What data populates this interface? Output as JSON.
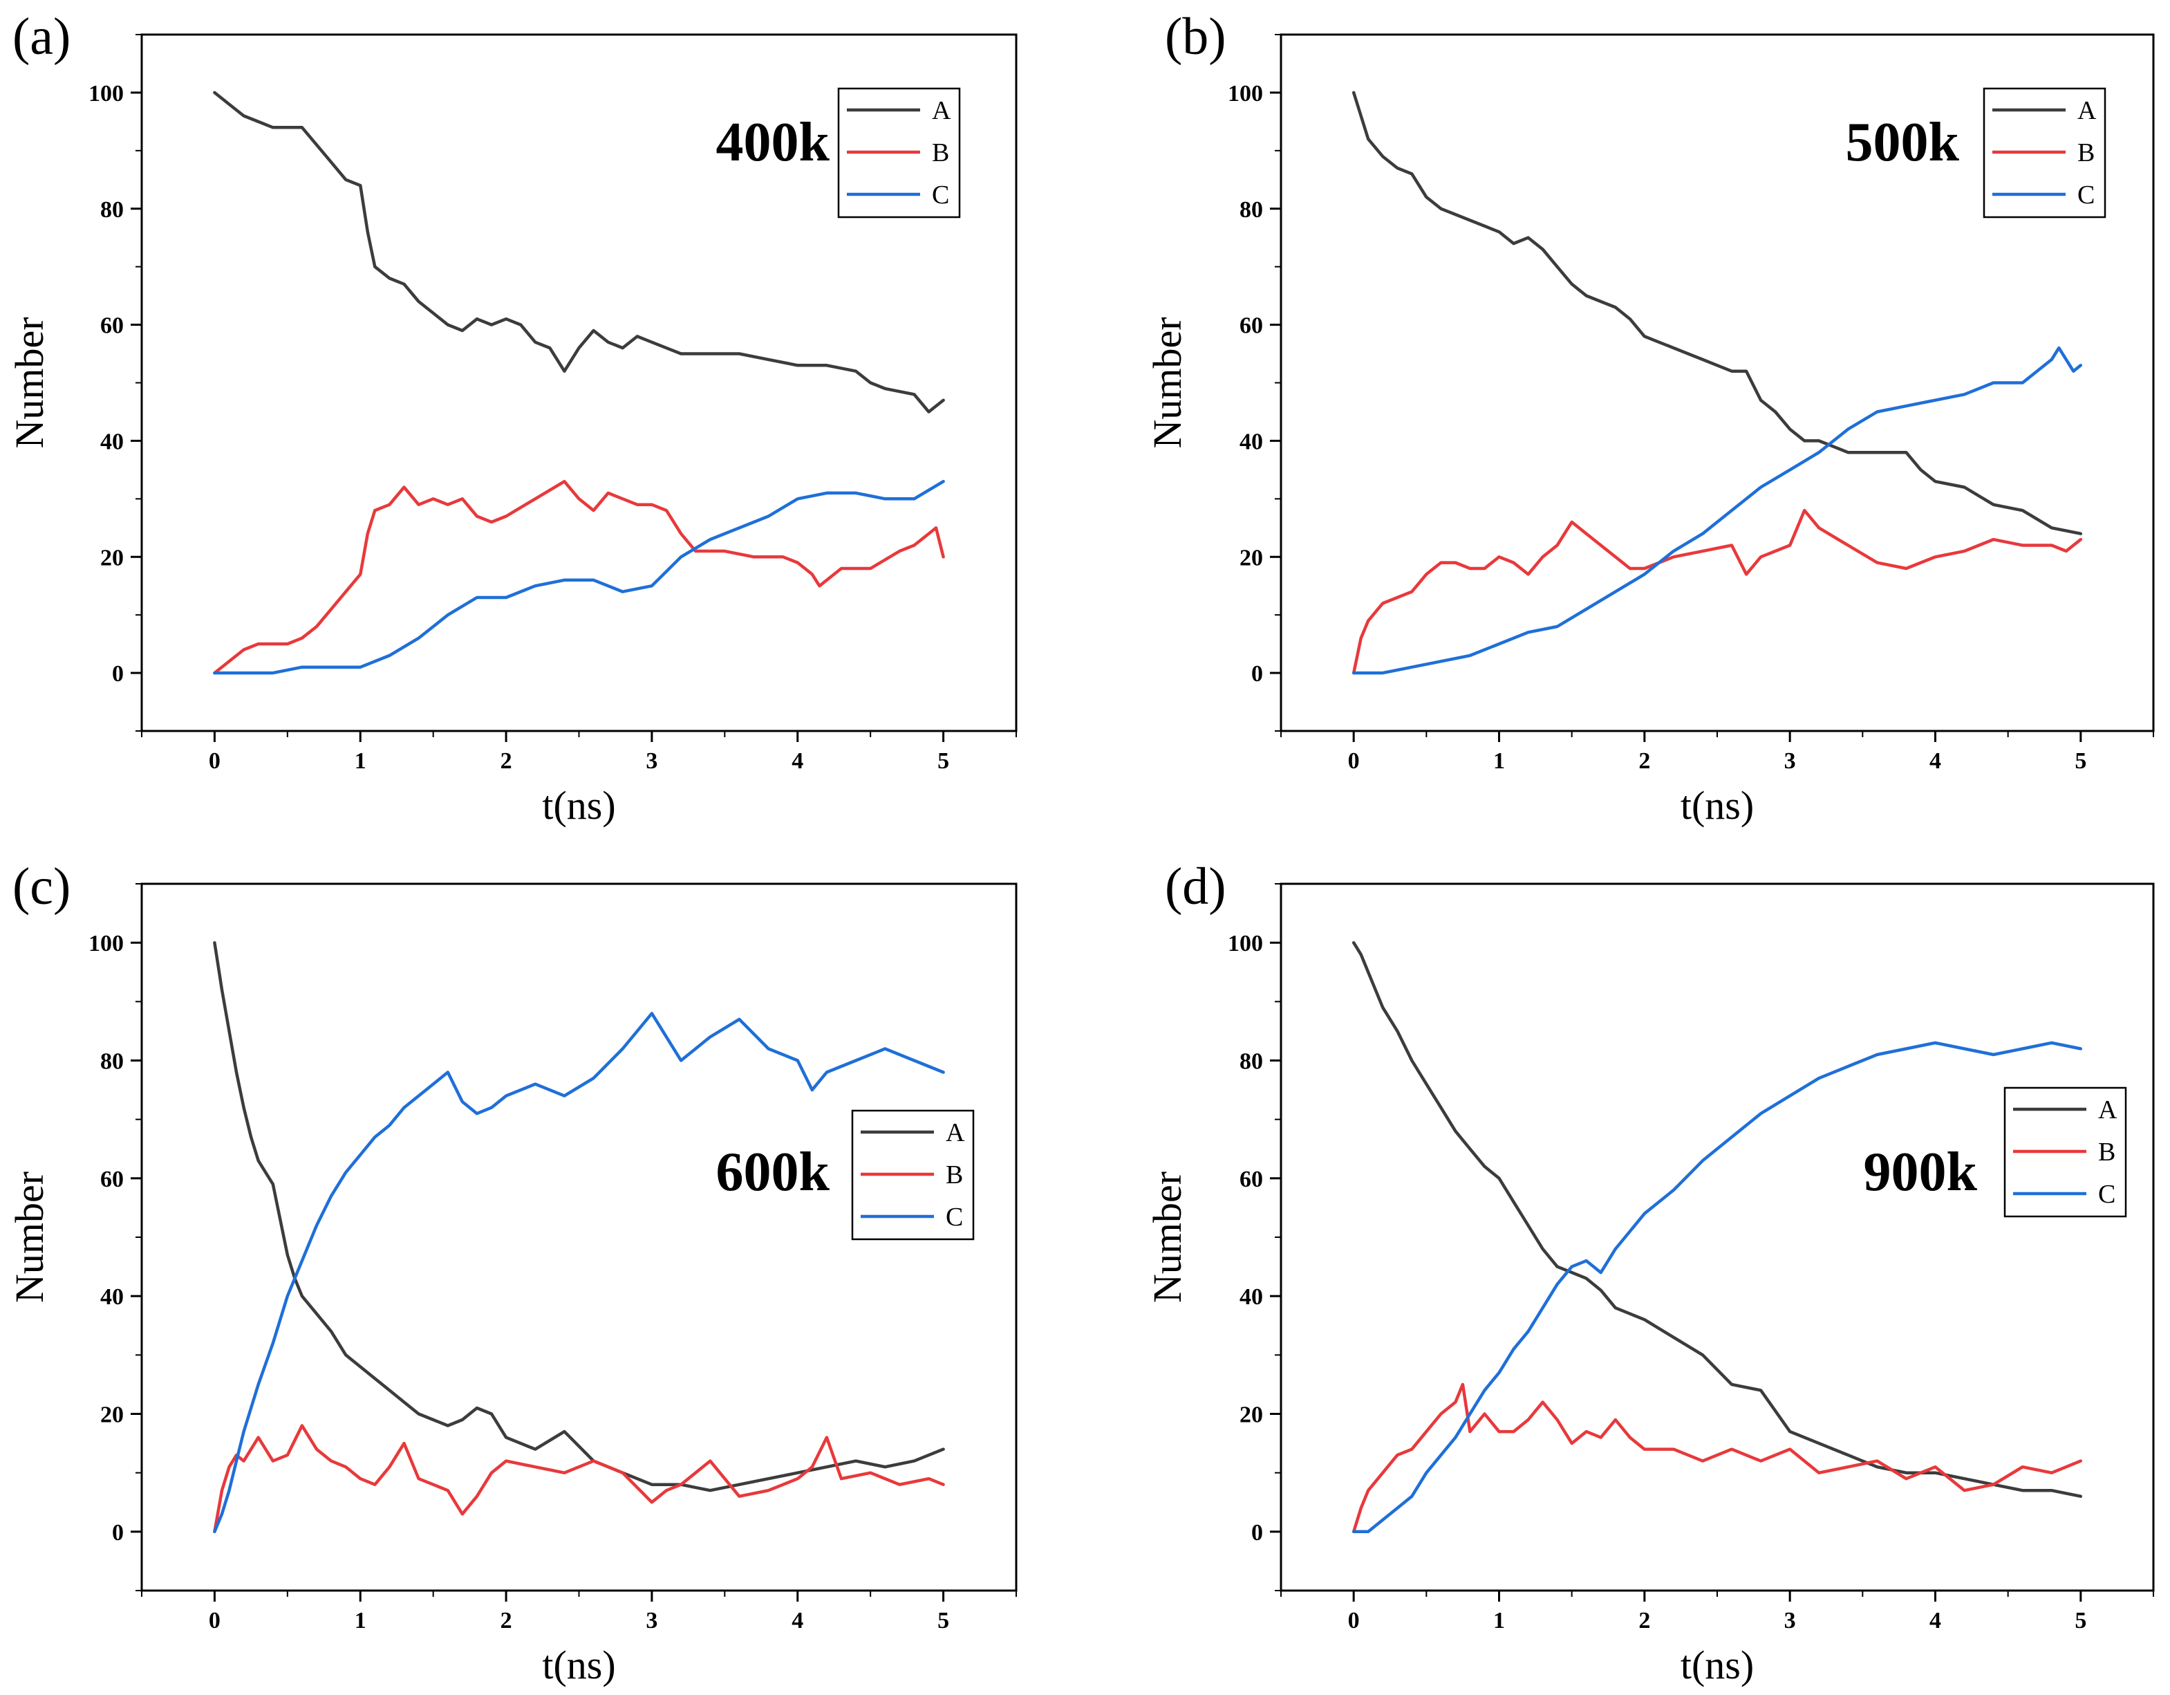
{
  "chart_data": [
    {
      "type": "line",
      "panel_label": "(a)",
      "annotation": "400k",
      "xlabel": "t(ns)",
      "ylabel": "Number",
      "xlim": [
        -0.5,
        5.5
      ],
      "ylim": [
        -10,
        110
      ],
      "xticks": [
        "0",
        "1",
        "2",
        "3",
        "4",
        "5"
      ],
      "yticks": [
        "0",
        "20",
        "40",
        "60",
        "80",
        "100"
      ],
      "legend_position": "top-right",
      "colors": {
        "A": "#3c3c3c",
        "B": "#e8393b",
        "C": "#1f6fd8"
      },
      "series": [
        {
          "name": "A",
          "x": [
            0,
            0.1,
            0.2,
            0.3,
            0.4,
            0.5,
            0.6,
            0.7,
            0.8,
            0.9,
            1.0,
            1.05,
            1.1,
            1.2,
            1.3,
            1.4,
            1.5,
            1.6,
            1.7,
            1.8,
            1.9,
            2.0,
            2.1,
            2.2,
            2.3,
            2.4,
            2.5,
            2.6,
            2.7,
            2.8,
            2.9,
            3.0,
            3.2,
            3.4,
            3.6,
            3.8,
            4.0,
            4.2,
            4.4,
            4.5,
            4.6,
            4.8,
            4.9,
            5.0
          ],
          "y": [
            100,
            98,
            96,
            95,
            94,
            94,
            94,
            91,
            88,
            85,
            84,
            76,
            70,
            68,
            67,
            64,
            62,
            60,
            59,
            61,
            60,
            61,
            60,
            57,
            56,
            52,
            56,
            59,
            57,
            56,
            58,
            57,
            55,
            55,
            55,
            54,
            53,
            53,
            52,
            50,
            49,
            48,
            45,
            47
          ]
        },
        {
          "name": "B",
          "x": [
            0,
            0.1,
            0.2,
            0.3,
            0.4,
            0.5,
            0.6,
            0.7,
            0.8,
            0.9,
            1.0,
            1.05,
            1.1,
            1.2,
            1.3,
            1.4,
            1.5,
            1.6,
            1.7,
            1.8,
            1.9,
            2.0,
            2.2,
            2.4,
            2.5,
            2.6,
            2.7,
            2.8,
            2.9,
            3.0,
            3.1,
            3.2,
            3.3,
            3.5,
            3.7,
            3.9,
            4.0,
            4.1,
            4.15,
            4.3,
            4.5,
            4.7,
            4.8,
            4.9,
            4.95,
            5.0
          ],
          "y": [
            0,
            2,
            4,
            5,
            5,
            5,
            6,
            8,
            11,
            14,
            17,
            24,
            28,
            29,
            32,
            29,
            30,
            29,
            30,
            27,
            26,
            27,
            30,
            33,
            30,
            28,
            31,
            30,
            29,
            29,
            28,
            24,
            21,
            21,
            20,
            20,
            19,
            17,
            15,
            18,
            18,
            21,
            22,
            24,
            25,
            20
          ]
        },
        {
          "name": "C",
          "x": [
            0,
            0.2,
            0.4,
            0.6,
            0.8,
            1.0,
            1.2,
            1.4,
            1.6,
            1.8,
            2.0,
            2.2,
            2.4,
            2.6,
            2.8,
            3.0,
            3.2,
            3.4,
            3.6,
            3.8,
            4.0,
            4.2,
            4.4,
            4.6,
            4.8,
            5.0
          ],
          "y": [
            0,
            0,
            0,
            1,
            1,
            1,
            3,
            6,
            10,
            13,
            13,
            15,
            16,
            16,
            14,
            15,
            20,
            23,
            25,
            27,
            30,
            31,
            31,
            30,
            30,
            33
          ]
        }
      ]
    },
    {
      "type": "line",
      "panel_label": "(b)",
      "annotation": "500k",
      "xlabel": "t(ns)",
      "ylabel": "Number",
      "xlim": [
        -0.5,
        5.5
      ],
      "ylim": [
        -10,
        110
      ],
      "xticks": [
        "0",
        "1",
        "2",
        "3",
        "4",
        "5"
      ],
      "yticks": [
        "0",
        "20",
        "40",
        "60",
        "80",
        "100"
      ],
      "legend_position": "top-right",
      "colors": {
        "A": "#3c3c3c",
        "B": "#e8393b",
        "C": "#1f6fd8"
      },
      "series": [
        {
          "name": "A",
          "x": [
            0,
            0.05,
            0.1,
            0.2,
            0.3,
            0.4,
            0.5,
            0.6,
            0.7,
            0.8,
            0.9,
            1.0,
            1.1,
            1.2,
            1.3,
            1.4,
            1.5,
            1.6,
            1.7,
            1.8,
            1.9,
            2.0,
            2.1,
            2.2,
            2.3,
            2.4,
            2.5,
            2.6,
            2.7,
            2.8,
            2.9,
            3.0,
            3.1,
            3.2,
            3.3,
            3.4,
            3.5,
            3.6,
            3.7,
            3.8,
            3.9,
            4.0,
            4.2,
            4.4,
            4.6,
            4.8,
            5.0
          ],
          "y": [
            100,
            96,
            92,
            89,
            87,
            86,
            82,
            80,
            79,
            78,
            77,
            76,
            74,
            75,
            73,
            70,
            67,
            65,
            64,
            63,
            61,
            58,
            57,
            56,
            55,
            54,
            53,
            52,
            52,
            47,
            45,
            42,
            40,
            40,
            39,
            38,
            38,
            38,
            38,
            38,
            35,
            33,
            32,
            29,
            28,
            25,
            24
          ]
        },
        {
          "name": "B",
          "x": [
            0,
            0.05,
            0.1,
            0.2,
            0.3,
            0.4,
            0.5,
            0.6,
            0.7,
            0.8,
            0.9,
            1.0,
            1.1,
            1.2,
            1.3,
            1.4,
            1.5,
            1.6,
            1.7,
            1.8,
            1.9,
            2.0,
            2.2,
            2.4,
            2.6,
            2.7,
            2.8,
            3.0,
            3.1,
            3.2,
            3.4,
            3.6,
            3.8,
            4.0,
            4.2,
            4.4,
            4.6,
            4.8,
            4.9,
            5.0
          ],
          "y": [
            0,
            6,
            9,
            12,
            13,
            14,
            17,
            19,
            19,
            18,
            18,
            20,
            19,
            17,
            20,
            22,
            26,
            24,
            22,
            20,
            18,
            18,
            20,
            21,
            22,
            17,
            20,
            22,
            28,
            25,
            22,
            19,
            18,
            20,
            21,
            23,
            22,
            22,
            21,
            23
          ]
        },
        {
          "name": "C",
          "x": [
            0,
            0.2,
            0.4,
            0.6,
            0.8,
            1.0,
            1.2,
            1.4,
            1.6,
            1.8,
            2.0,
            2.2,
            2.4,
            2.6,
            2.8,
            3.0,
            3.2,
            3.4,
            3.6,
            3.8,
            4.0,
            4.2,
            4.4,
            4.6,
            4.8,
            4.85,
            4.95,
            5.0
          ],
          "y": [
            0,
            0,
            1,
            2,
            3,
            5,
            7,
            8,
            11,
            14,
            17,
            21,
            24,
            28,
            32,
            35,
            38,
            42,
            45,
            46,
            47,
            48,
            50,
            50,
            54,
            56,
            52,
            53
          ]
        }
      ]
    },
    {
      "type": "line",
      "panel_label": "(c)",
      "annotation": "600k",
      "xlabel": "t(ns)",
      "ylabel": "Number",
      "xlim": [
        -0.5,
        5.5
      ],
      "ylim": [
        -10,
        110
      ],
      "xticks": [
        "0",
        "1",
        "2",
        "3",
        "4",
        "5"
      ],
      "yticks": [
        "0",
        "20",
        "40",
        "60",
        "80",
        "100"
      ],
      "legend_position": "middle-right",
      "colors": {
        "A": "#3c3c3c",
        "B": "#e8393b",
        "C": "#1f6fd8"
      },
      "series": [
        {
          "name": "A",
          "x": [
            0,
            0.05,
            0.1,
            0.15,
            0.2,
            0.25,
            0.3,
            0.35,
            0.4,
            0.45,
            0.5,
            0.55,
            0.6,
            0.7,
            0.8,
            0.9,
            1.0,
            1.1,
            1.2,
            1.3,
            1.4,
            1.5,
            1.6,
            1.7,
            1.8,
            1.9,
            2.0,
            2.2,
            2.4,
            2.6,
            2.8,
            3.0,
            3.2,
            3.4,
            3.6,
            3.8,
            4.0,
            4.2,
            4.4,
            4.6,
            4.8,
            5.0
          ],
          "y": [
            100,
            92,
            85,
            78,
            72,
            67,
            63,
            61,
            59,
            53,
            47,
            43,
            40,
            37,
            34,
            30,
            28,
            26,
            24,
            22,
            20,
            19,
            18,
            19,
            21,
            20,
            16,
            14,
            17,
            12,
            10,
            8,
            8,
            7,
            8,
            9,
            10,
            11,
            12,
            11,
            12,
            14
          ]
        },
        {
          "name": "B",
          "x": [
            0,
            0.05,
            0.1,
            0.15,
            0.2,
            0.3,
            0.4,
            0.5,
            0.6,
            0.7,
            0.8,
            0.9,
            1.0,
            1.1,
            1.2,
            1.3,
            1.4,
            1.5,
            1.6,
            1.7,
            1.8,
            1.9,
            2.0,
            2.2,
            2.4,
            2.6,
            2.8,
            3.0,
            3.1,
            3.2,
            3.4,
            3.6,
            3.8,
            4.0,
            4.1,
            4.2,
            4.3,
            4.5,
            4.7,
            4.9,
            5.0
          ],
          "y": [
            0,
            7,
            11,
            13,
            12,
            16,
            12,
            13,
            18,
            14,
            12,
            11,
            9,
            8,
            11,
            15,
            9,
            8,
            7,
            3,
            6,
            10,
            12,
            11,
            10,
            12,
            10,
            5,
            7,
            8,
            12,
            6,
            7,
            9,
            11,
            16,
            9,
            10,
            8,
            9,
            8
          ]
        },
        {
          "name": "C",
          "x": [
            0,
            0.05,
            0.1,
            0.15,
            0.2,
            0.3,
            0.4,
            0.5,
            0.6,
            0.7,
            0.8,
            0.9,
            1.0,
            1.1,
            1.2,
            1.3,
            1.4,
            1.5,
            1.6,
            1.7,
            1.8,
            1.9,
            2.0,
            2.2,
            2.4,
            2.6,
            2.8,
            3.0,
            3.2,
            3.4,
            3.6,
            3.8,
            4.0,
            4.1,
            4.2,
            4.4,
            4.6,
            4.8,
            5.0
          ],
          "y": [
            0,
            3,
            7,
            12,
            17,
            25,
            32,
            40,
            46,
            52,
            57,
            61,
            64,
            67,
            69,
            72,
            74,
            76,
            78,
            73,
            71,
            72,
            74,
            76,
            74,
            77,
            82,
            88,
            80,
            84,
            87,
            82,
            80,
            75,
            78,
            80,
            82,
            80,
            78
          ]
        }
      ]
    },
    {
      "type": "line",
      "panel_label": "(d)",
      "annotation": "900k",
      "xlabel": "t(ns)",
      "ylabel": "Number",
      "xlim": [
        -0.5,
        5.5
      ],
      "ylim": [
        -10,
        110
      ],
      "xticks": [
        "0",
        "1",
        "2",
        "3",
        "4",
        "5"
      ],
      "yticks": [
        "0",
        "20",
        "40",
        "60",
        "80",
        "100"
      ],
      "legend_position": "middle-right",
      "colors": {
        "A": "#3c3c3c",
        "B": "#e8393b",
        "C": "#1f6fd8"
      },
      "series": [
        {
          "name": "A",
          "x": [
            0,
            0.05,
            0.1,
            0.15,
            0.2,
            0.3,
            0.4,
            0.5,
            0.6,
            0.7,
            0.8,
            0.9,
            1.0,
            1.1,
            1.2,
            1.3,
            1.4,
            1.5,
            1.6,
            1.7,
            1.8,
            1.9,
            2.0,
            2.2,
            2.4,
            2.6,
            2.8,
            3.0,
            3.2,
            3.4,
            3.6,
            3.8,
            4.0,
            4.2,
            4.4,
            4.6,
            4.8,
            5.0
          ],
          "y": [
            100,
            98,
            95,
            92,
            89,
            85,
            80,
            76,
            72,
            68,
            65,
            62,
            60,
            56,
            52,
            48,
            45,
            44,
            43,
            41,
            38,
            37,
            36,
            33,
            30,
            25,
            24,
            17,
            15,
            13,
            11,
            10,
            10,
            9,
            8,
            7,
            7,
            6
          ]
        },
        {
          "name": "B",
          "x": [
            0,
            0.05,
            0.1,
            0.2,
            0.3,
            0.4,
            0.5,
            0.6,
            0.7,
            0.75,
            0.8,
            0.9,
            1.0,
            1.1,
            1.2,
            1.3,
            1.4,
            1.5,
            1.6,
            1.7,
            1.8,
            1.9,
            2.0,
            2.2,
            2.4,
            2.6,
            2.8,
            3.0,
            3.2,
            3.4,
            3.6,
            3.8,
            4.0,
            4.2,
            4.4,
            4.6,
            4.8,
            5.0
          ],
          "y": [
            0,
            4,
            7,
            10,
            13,
            14,
            17,
            20,
            22,
            25,
            17,
            20,
            17,
            17,
            19,
            22,
            19,
            15,
            17,
            16,
            19,
            16,
            14,
            14,
            12,
            14,
            12,
            14,
            10,
            11,
            12,
            9,
            11,
            7,
            8,
            11,
            10,
            12
          ]
        },
        {
          "name": "C",
          "x": [
            0,
            0.1,
            0.2,
            0.3,
            0.4,
            0.5,
            0.6,
            0.7,
            0.8,
            0.9,
            1.0,
            1.1,
            1.2,
            1.3,
            1.4,
            1.5,
            1.6,
            1.7,
            1.8,
            1.9,
            2.0,
            2.2,
            2.4,
            2.6,
            2.8,
            3.0,
            3.2,
            3.4,
            3.6,
            3.8,
            4.0,
            4.2,
            4.4,
            4.6,
            4.8,
            5.0
          ],
          "y": [
            0,
            0,
            2,
            4,
            6,
            10,
            13,
            16,
            20,
            24,
            27,
            31,
            34,
            38,
            42,
            45,
            46,
            44,
            48,
            51,
            54,
            58,
            63,
            67,
            71,
            74,
            77,
            79,
            81,
            82,
            83,
            82,
            81,
            82,
            83,
            82
          ]
        }
      ]
    }
  ]
}
